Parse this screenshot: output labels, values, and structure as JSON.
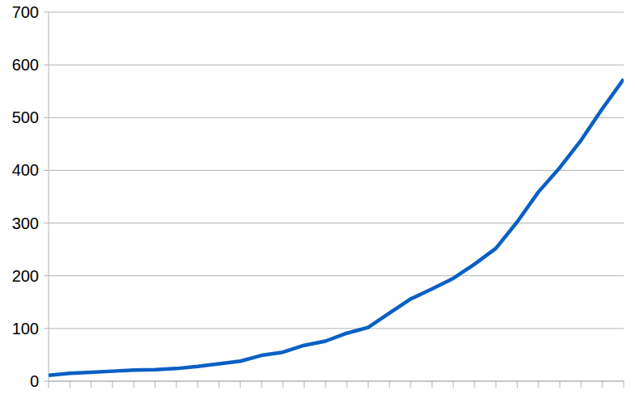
{
  "chart_data": {
    "type": "line",
    "categories": [
      null,
      null,
      null,
      null,
      null,
      null,
      null,
      null,
      null,
      null,
      null,
      null,
      null,
      null,
      null,
      null,
      null,
      null,
      null,
      null,
      null,
      null,
      null,
      null,
      null,
      null,
      null,
      null
    ],
    "values": [
      11,
      15,
      17,
      19,
      21,
      22,
      24,
      28,
      33,
      38,
      49,
      55,
      68,
      76,
      91,
      102,
      129,
      156,
      175,
      195,
      222,
      252,
      302,
      359,
      405,
      457,
      517,
      573
    ],
    "color": "#0a5fc4",
    "ylim": [
      0,
      700
    ],
    "yticks": [
      0,
      100,
      200,
      300,
      400,
      500,
      600,
      700
    ],
    "grid": true,
    "tick_labels": "y"
  }
}
